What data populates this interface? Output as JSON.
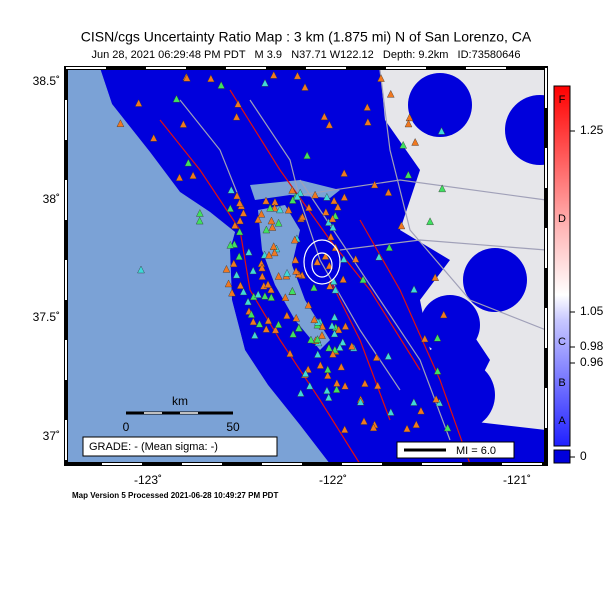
{
  "header": {
    "title": "CISN/cgs Uncertainty Ratio Map : 3 km (1.875 mi) N of San Lorenzo, CA",
    "subtitle": "Jun 28, 2021 06:29:48 PM PDT   M 3.9   N37.71 W122.12   Depth: 9.2km   ID:73580646"
  },
  "map": {
    "lat_labels": [
      "38.5˚",
      "38˚",
      "37.5˚",
      "37˚"
    ],
    "lon_labels": [
      "-123˚",
      "-122˚",
      "-121˚"
    ],
    "scale": {
      "unit": "km",
      "labels": [
        "0",
        "50"
      ]
    },
    "grade": "GRADE: - (Mean sigma: -)",
    "legend": "MI = 6.0"
  },
  "colorbar": {
    "grades": [
      "F",
      "D",
      "C",
      "B",
      "A"
    ],
    "labels": [
      "1.25",
      "1.05",
      "0.98",
      "0.96",
      "0"
    ]
  },
  "footer": "Map Version 5 Processed 2021-06-28 10:49:27 PM PDT"
}
